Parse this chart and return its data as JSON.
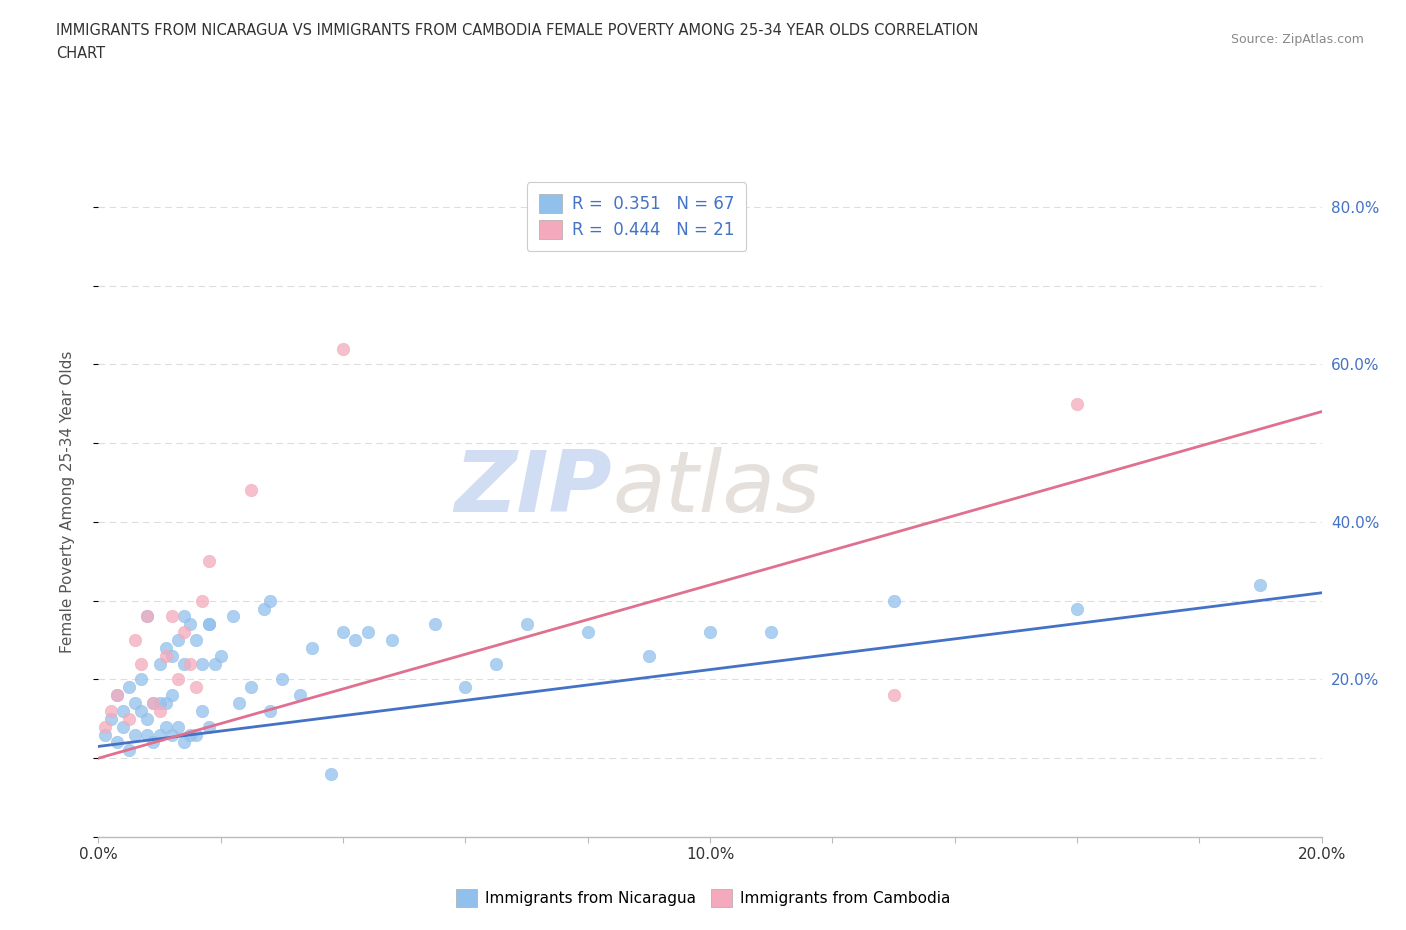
{
  "title_line1": "IMMIGRANTS FROM NICARAGUA VS IMMIGRANTS FROM CAMBODIA FEMALE POVERTY AMONG 25-34 YEAR OLDS CORRELATION",
  "title_line2": "CHART",
  "source": "Source: ZipAtlas.com",
  "watermark_zip": "ZIP",
  "watermark_atlas": "atlas",
  "ylabel": "Female Poverty Among 25-34 Year Olds",
  "xlim": [
    0.0,
    0.2
  ],
  "ylim": [
    0.0,
    0.85
  ],
  "legend1_label": "Immigrants from Nicaragua",
  "legend2_label": "Immigrants from Cambodia",
  "R1": 0.351,
  "N1": 67,
  "R2": 0.444,
  "N2": 21,
  "color1": "#92C0EC",
  "color2": "#F4AABC",
  "trendline1_color": "#4472C4",
  "trendline2_color": "#E07090",
  "scatter1_x": [
    0.001,
    0.002,
    0.003,
    0.003,
    0.004,
    0.004,
    0.005,
    0.005,
    0.006,
    0.006,
    0.007,
    0.007,
    0.008,
    0.008,
    0.008,
    0.009,
    0.009,
    0.01,
    0.01,
    0.01,
    0.011,
    0.011,
    0.011,
    0.012,
    0.012,
    0.012,
    0.013,
    0.013,
    0.014,
    0.014,
    0.014,
    0.015,
    0.015,
    0.016,
    0.016,
    0.017,
    0.017,
    0.018,
    0.018,
    0.019,
    0.02,
    0.022,
    0.023,
    0.025,
    0.027,
    0.028,
    0.03,
    0.033,
    0.035,
    0.038,
    0.04,
    0.044,
    0.048,
    0.055,
    0.06,
    0.065,
    0.07,
    0.08,
    0.09,
    0.1,
    0.11,
    0.13,
    0.16,
    0.018,
    0.028,
    0.042,
    0.19
  ],
  "scatter1_y": [
    0.13,
    0.15,
    0.12,
    0.18,
    0.14,
    0.16,
    0.11,
    0.19,
    0.13,
    0.17,
    0.16,
    0.2,
    0.13,
    0.15,
    0.28,
    0.12,
    0.17,
    0.13,
    0.17,
    0.22,
    0.14,
    0.17,
    0.24,
    0.13,
    0.18,
    0.23,
    0.14,
    0.25,
    0.12,
    0.22,
    0.28,
    0.13,
    0.27,
    0.13,
    0.25,
    0.16,
    0.22,
    0.14,
    0.27,
    0.22,
    0.23,
    0.28,
    0.17,
    0.19,
    0.29,
    0.16,
    0.2,
    0.18,
    0.24,
    0.08,
    0.26,
    0.26,
    0.25,
    0.27,
    0.19,
    0.22,
    0.27,
    0.26,
    0.23,
    0.26,
    0.26,
    0.3,
    0.29,
    0.27,
    0.3,
    0.25,
    0.32
  ],
  "scatter2_x": [
    0.001,
    0.002,
    0.003,
    0.005,
    0.006,
    0.007,
    0.008,
    0.009,
    0.01,
    0.011,
    0.012,
    0.013,
    0.014,
    0.015,
    0.016,
    0.017,
    0.018,
    0.025,
    0.04,
    0.13,
    0.16
  ],
  "scatter2_y": [
    0.14,
    0.16,
    0.18,
    0.15,
    0.25,
    0.22,
    0.28,
    0.17,
    0.16,
    0.23,
    0.28,
    0.2,
    0.26,
    0.22,
    0.19,
    0.3,
    0.35,
    0.44,
    0.62,
    0.18,
    0.55
  ],
  "trendline1_x": [
    0.0,
    0.2
  ],
  "trendline1_y": [
    0.115,
    0.31
  ],
  "trendline2_x": [
    0.0,
    0.2
  ],
  "trendline2_y": [
    0.1,
    0.54
  ],
  "background_color": "#FFFFFF",
  "grid_color": "#DDDDDD",
  "right_tick_color": "#4472C4",
  "title_color": "#333333",
  "source_color": "#888888"
}
